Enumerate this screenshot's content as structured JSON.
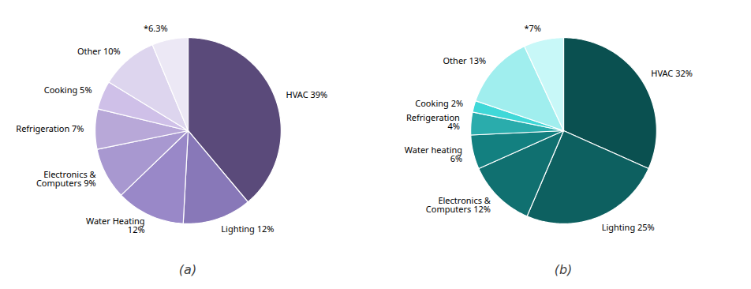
{
  "chart_data": [
    {
      "type": "pie",
      "subtitle": "(a)",
      "categories": [
        "HVAC 39%",
        "Lighting 12%",
        "Water Heating\n12%",
        "Electronics &\nComputers 9%",
        "Refrigeration 7%",
        "Cooking 5%",
        "Other 10%",
        "*6.3%"
      ],
      "values": [
        39,
        12,
        12,
        9,
        7,
        5,
        10,
        6.3
      ],
      "colors": [
        "#5a4a7a",
        "#8878b8",
        "#9988c8",
        "#a898d0",
        "#b8a8d8",
        "#cfc0e8",
        "#ddd5ee",
        "#ece8f5"
      ]
    },
    {
      "type": "pie",
      "subtitle": "(b)",
      "categories": [
        "HVAC 32%",
        "Lighting 25%",
        "Electronics &\nComputers 12%",
        "Water heating\n6%",
        "Refrigeration\n4%",
        "Cooking 2%",
        "Other 13%",
        "*7%"
      ],
      "values": [
        32,
        25,
        12,
        6,
        4,
        2,
        13,
        7
      ],
      "colors": [
        "#0a5050",
        "#0d6060",
        "#107070",
        "#138080",
        "#2aacac",
        "#40d8d8",
        "#a0eeee",
        "#c8f8f8"
      ]
    }
  ]
}
